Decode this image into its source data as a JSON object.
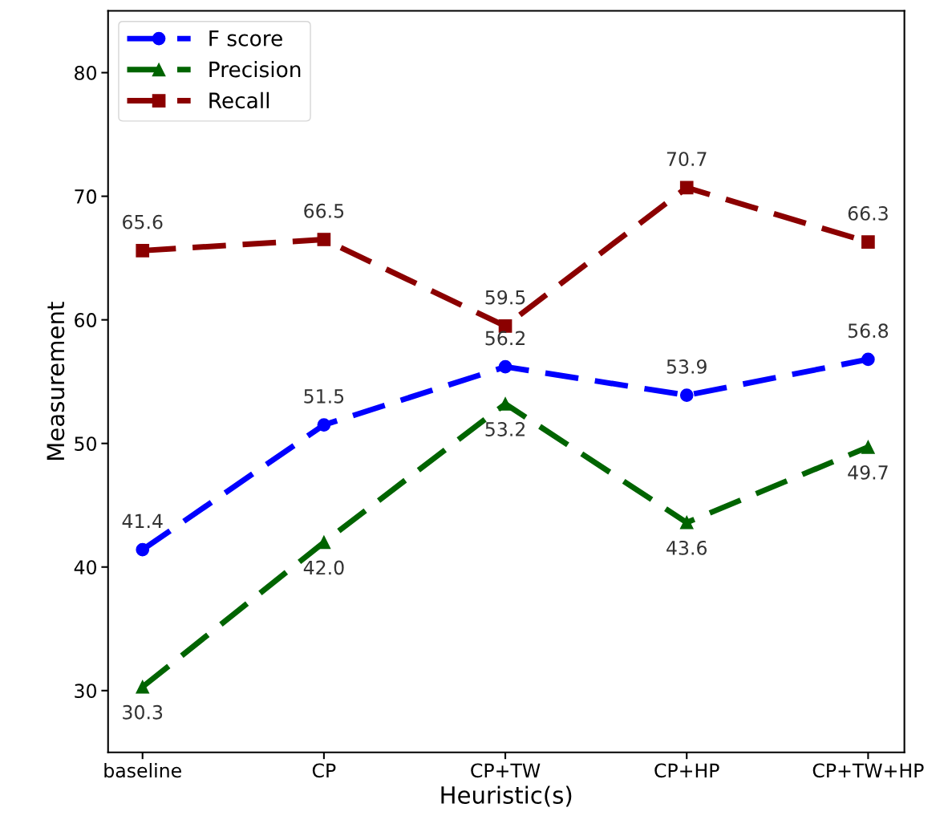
{
  "chart_data": {
    "type": "line",
    "xlabel": "Heuristic(s)",
    "ylabel": "Measurement",
    "categories": [
      "baseline",
      "CP",
      "CP+TW",
      "CP+HP",
      "CP+TW+HP"
    ],
    "series": [
      {
        "name": "F score",
        "color": "#0000ff",
        "marker": "circle",
        "values": [
          41.4,
          51.5,
          56.2,
          53.9,
          56.8
        ],
        "value_labels": [
          "41.4",
          "51.5",
          "56.2",
          "53.9",
          "56.8"
        ]
      },
      {
        "name": "Precision",
        "color": "#006400",
        "marker": "triangle",
        "values": [
          30.3,
          42.0,
          53.2,
          43.6,
          49.7
        ],
        "value_labels": [
          "30.3",
          "42.0",
          "53.2",
          "43.6",
          "49.7"
        ]
      },
      {
        "name": "Recall",
        "color": "#8b0000",
        "marker": "square",
        "values": [
          65.6,
          66.5,
          59.5,
          70.7,
          66.3
        ],
        "value_labels": [
          "65.6",
          "66.5",
          "59.5",
          "70.7",
          "66.3"
        ]
      }
    ],
    "ylim": [
      25,
      85
    ],
    "yticks": [
      30,
      40,
      50,
      60,
      70,
      80
    ],
    "line_style": "dashed",
    "legend": "top left",
    "grid": false
  }
}
